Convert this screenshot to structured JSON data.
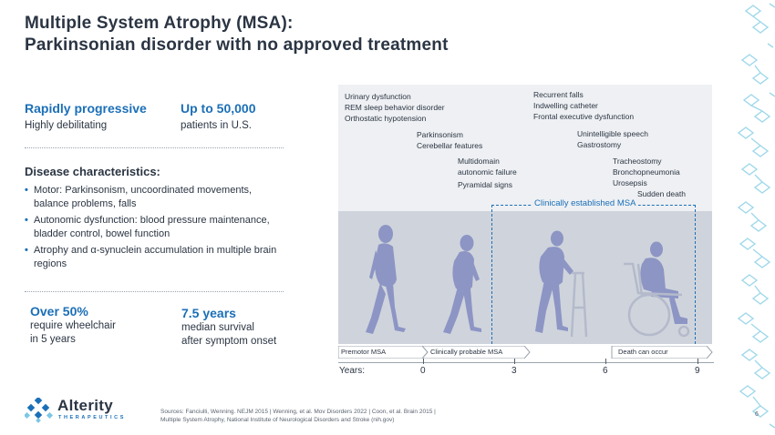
{
  "title": {
    "line1": "Multiple System Atrophy (MSA):",
    "line2": "Parkinsonian disorder with no approved treatment"
  },
  "stats_top": [
    {
      "big": "Rapidly progressive",
      "small": "Highly debilitating"
    },
    {
      "big": "Up to 50,000",
      "small": "patients in U.S."
    }
  ],
  "disease": {
    "heading": "Disease characteristics:",
    "bullets": [
      "Motor: Parkinsonism, uncoordinated movements, balance problems, falls",
      "Autonomic dysfunction: blood pressure maintenance, bladder control, bowel function",
      "Atrophy and α-synuclein accumulation in multiple brain regions"
    ]
  },
  "stats_bottom": [
    {
      "big": "Over 50%",
      "small1": "require wheelchair",
      "small2": "in 5 years"
    },
    {
      "big": "7.5 years",
      "small1": "median survival",
      "small2": "after symptom onset"
    }
  ],
  "timeline": {
    "symptoms": {
      "group1": [
        "Urinary dysfunction",
        "REM sleep behavior disorder",
        "Orthostatic hypotension"
      ],
      "group2": [
        "Parkinsonism",
        "Cerebellar features"
      ],
      "group3": [
        "Multidomain",
        "autonomic failure",
        "Pyramidal signs"
      ],
      "group4": [
        "Recurrent falls",
        "Indwelling catheter",
        "Frontal executive dysfunction"
      ],
      "group5": [
        "Unintelligible speech",
        "Gastrostomy"
      ],
      "group6": [
        "Tracheostomy",
        "Bronchopneumonia",
        "Urosepsis"
      ],
      "group7": [
        "Sudden death"
      ]
    },
    "clinical_label": "Clinically established MSA",
    "stages": [
      "Premotor MSA",
      "Clinically probable MSA",
      "Death can occur"
    ],
    "axis_label": "Years:",
    "ticks": [
      "0",
      "3",
      "6",
      "9"
    ]
  },
  "logo": {
    "name": "Alterity",
    "sub": "THERAPEUTICS"
  },
  "sources": {
    "line1": "Sources: Fanciulli, Wenning. NEJM 2015 | Wenning, et al. Mov Disorders 2022 | Coon, et al. Brain 2015 |",
    "line2": "Multiple System Atrophy, National Institute of Neurological Disorders and Stroke (nih.gov)"
  },
  "page_number": "6",
  "colors": {
    "accent": "#1b6fb7",
    "text": "#2b3543",
    "figure": "#8c95c4",
    "panel": "#eef0f3"
  }
}
